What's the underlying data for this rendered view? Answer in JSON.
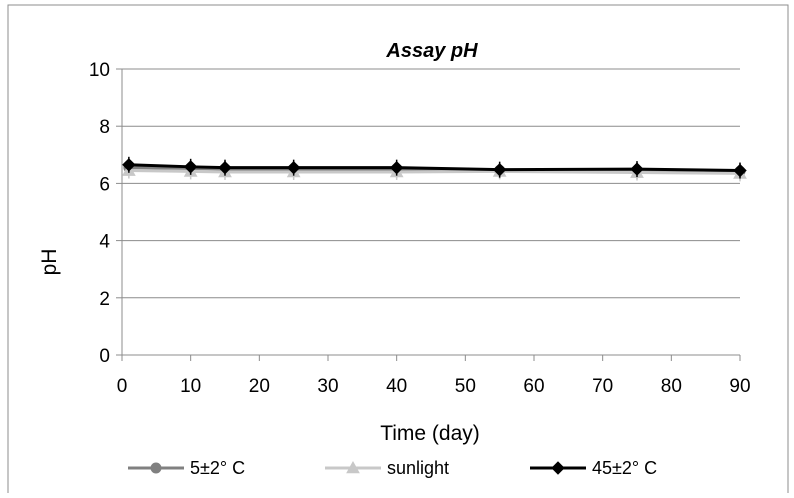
{
  "chart_data": {
    "type": "line",
    "title": "Assay pH",
    "xlabel": "Time (day)",
    "ylabel": "pH",
    "xlim": [
      0,
      90
    ],
    "ylim": [
      0,
      10
    ],
    "x_ticks": [
      0,
      10,
      20,
      30,
      40,
      50,
      60,
      70,
      80,
      90
    ],
    "y_ticks": [
      0,
      2,
      4,
      6,
      8,
      10
    ],
    "grid": "horizontal",
    "legend_position": "bottom",
    "series": [
      {
        "name": "5±2° C",
        "color": "#808080",
        "marker": "circle",
        "x": [
          1,
          10,
          15,
          25,
          40,
          55,
          75,
          90
        ],
        "y": [
          6.55,
          6.52,
          6.5,
          6.5,
          6.48,
          6.45,
          6.45,
          6.42
        ]
      },
      {
        "name": "sunlight",
        "color": "#c8c8c8",
        "marker": "triangle",
        "x": [
          1,
          10,
          15,
          25,
          40,
          55,
          75,
          90
        ],
        "y": [
          6.45,
          6.42,
          6.4,
          6.4,
          6.4,
          6.42,
          6.38,
          6.35
        ]
      },
      {
        "name": "45±2° C",
        "color": "#000000",
        "marker": "diamond",
        "x": [
          1,
          10,
          15,
          25,
          40,
          55,
          75,
          90
        ],
        "y": [
          6.65,
          6.58,
          6.55,
          6.55,
          6.55,
          6.48,
          6.5,
          6.45
        ]
      }
    ]
  }
}
